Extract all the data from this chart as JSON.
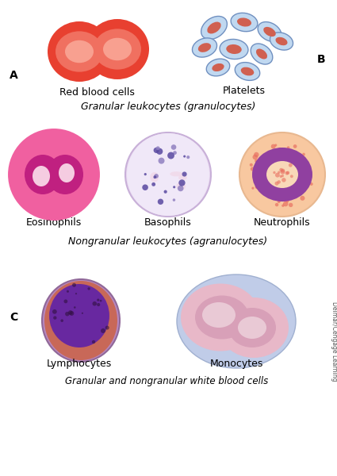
{
  "background_color": "#ffffff",
  "label_A": "A",
  "label_B": "B",
  "label_C": "C",
  "label_rbc": "Red blood cells",
  "label_platelets": "Platelets",
  "label_granular": "Granular leukocytes (granulocytes)",
  "label_eosinophils": "Eosinophils",
  "label_basophils": "Basophils",
  "label_neutrophils": "Neutrophils",
  "label_nongranular": "Nongranular leukocytes (agranulocytes)",
  "label_lymphocytes": "Lymphocytes",
  "label_monocytes": "Monocytes",
  "label_footer": "Granular and nongranular white blood cells",
  "label_copyright": "Delmar/Cengage Learning",
  "rbc_color1": "#e84030",
  "rbc_color2": "#f07060",
  "rbc_color3": "#f8a090",
  "platelet_blue": "#7090c0",
  "platelet_fill": "#d06050",
  "platelet_light": "#c0d8f0",
  "eosinophil_bg": "#f060a0",
  "eosinophil_outer_ring": "#e84090",
  "eosinophil_nucleus": "#c02080",
  "eosinophil_white": "#fce8f0",
  "basophil_bg": "#e8d8f0",
  "basophil_outer": "#c8b0d8",
  "basophil_dot_dark": "#5848a0",
  "basophil_dot_mid": "#9080c0",
  "basophil_pink": "#f0c0d0",
  "neutrophil_bg": "#f8c8a0",
  "neutrophil_outer": "#e8b890",
  "neutrophil_nucleus": "#9040a0",
  "neutrophil_granules": "#e87060",
  "neutrophil_center": "#f8d8b8",
  "lymphocyte_outer": "#b888c0",
  "lymphocyte_cytoplasm": "#c86858",
  "lymphocyte_nucleus": "#6828a0",
  "lymphocyte_rim": "#e8c0d0",
  "monocyte_bg": "#c0cce8",
  "monocyte_cell": "#e8b8c8",
  "monocyte_nucleus": "#d8a0b8",
  "monocyte_light": "#f0d8e0",
  "text_color": "#000000",
  "font_size_label": 9,
  "font_size_section": 9
}
